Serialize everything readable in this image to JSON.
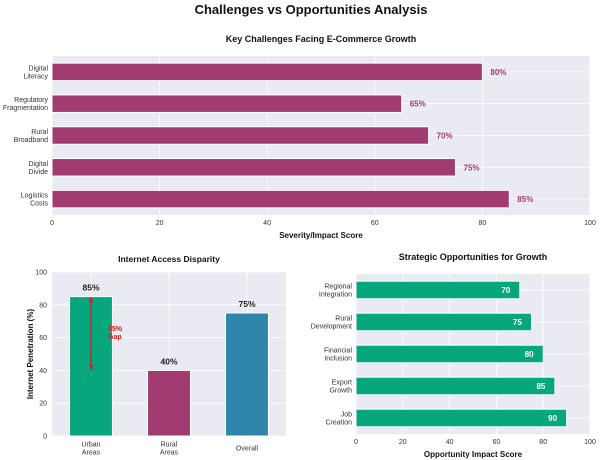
{
  "figure": {
    "title": "Challenges vs Opportunities Analysis"
  },
  "chart_data": [
    {
      "id": "challenges",
      "type": "bar",
      "orientation": "horizontal",
      "title": "Key Challenges Facing E-Commerce Growth",
      "xlabel": "Severity/Impact Score",
      "ylabel": "",
      "categories": [
        "Logistics\nCosts",
        "Digital\nDivide",
        "Rural\nBroadband",
        "Regulatory\nFragmentation",
        "Digital\nLiteracy"
      ],
      "values": [
        85,
        75,
        70,
        65,
        80
      ],
      "data_labels": [
        "85%",
        "75%",
        "70%",
        "65%",
        "80%"
      ],
      "xlim": [
        0,
        100
      ],
      "xticks": [
        0,
        20,
        40,
        60,
        80,
        100
      ],
      "xtick_labels": [
        "0",
        "20",
        "40",
        "60",
        "80",
        "100"
      ],
      "grid": true,
      "bar_color": "#A23B72",
      "label_color": "#A23B72"
    },
    {
      "id": "access",
      "type": "bar",
      "orientation": "vertical",
      "title": "Internet Access Disparity",
      "xlabel": "",
      "ylabel": "Internet Penetration (%)",
      "categories": [
        "Urban\nAreas",
        "Rural\nAreas",
        "Overall"
      ],
      "values": [
        85,
        40,
        75
      ],
      "data_labels": [
        "85%",
        "40%",
        "75%"
      ],
      "bar_colors": [
        "#06A77D",
        "#A23B72",
        "#2E86AB"
      ],
      "ylim": [
        0,
        100
      ],
      "yticks": [
        0,
        20,
        40,
        60,
        80,
        100
      ],
      "ytick_labels": [
        "0",
        "20",
        "40",
        "60",
        "80",
        "100"
      ],
      "grid": true,
      "annotation": {
        "text": "45%\nGap",
        "from_value": 40,
        "to_value": 85,
        "category_index": 0,
        "color": "#E8141B"
      }
    },
    {
      "id": "opportunities",
      "type": "bar",
      "orientation": "horizontal",
      "title": "Strategic Opportunities for Growth",
      "xlabel": "Opportunity Impact Score",
      "ylabel": "",
      "categories": [
        "Job\nCreation",
        "Export\nGrowth",
        "Financial\nInclusion",
        "Rural\nDevelopment",
        "Regional\nIntegration"
      ],
      "values": [
        90,
        85,
        80,
        75,
        70
      ],
      "data_labels": [
        "90",
        "85",
        "80",
        "75",
        "70"
      ],
      "xlim": [
        0,
        100
      ],
      "xticks": [
        0,
        20,
        40,
        60,
        80,
        100
      ],
      "xtick_labels": [
        "0",
        "20",
        "40",
        "60",
        "80",
        "100"
      ],
      "grid": true,
      "bar_color": "#06A77D",
      "label_color": "#FFFFFF"
    }
  ]
}
